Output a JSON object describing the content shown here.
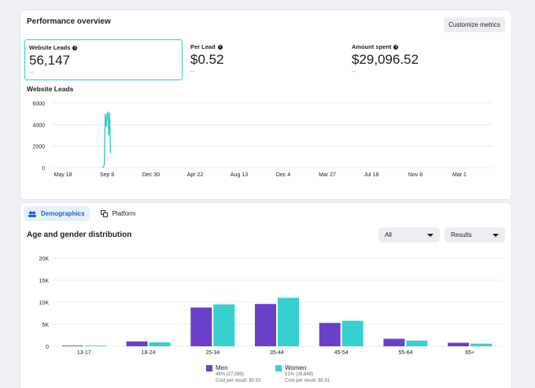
{
  "performance": {
    "title": "Performance overview",
    "customize_label": "Customize metrics",
    "metrics": [
      {
        "label": "Website Leads",
        "value": "56,147",
        "sub": "--"
      },
      {
        "label": "Per Lead",
        "value": "$0.52",
        "sub": "--"
      },
      {
        "label": "Amount spent",
        "value": "$29,096.52",
        "sub": "--"
      }
    ],
    "chart_title": "Website Leads"
  },
  "demographics": {
    "tabs": [
      {
        "label": "Demographics",
        "icon": "people-icon"
      },
      {
        "label": "Platform",
        "icon": "platform-icon"
      }
    ],
    "title": "Age and gender distribution",
    "filter_value": "All",
    "metric_value": "Results",
    "legend": [
      {
        "name": "Men",
        "line1": "48% (27,088)",
        "line2": "Cost per result: $0.53"
      },
      {
        "name": "Women",
        "line1": "51% (28,848)",
        "line2": "Cost per result: $0.51"
      }
    ]
  },
  "colors": {
    "accent": "#39c7c7",
    "men": "#6a3fc9",
    "women": "#36d1cf"
  },
  "chart_data": [
    {
      "type": "line",
      "title": "Website Leads",
      "x_ticks": [
        "May 18",
        "Sep 8",
        "Dec 30",
        "Apr 22",
        "Aug 13",
        "Dec 4",
        "Mar 27",
        "Jul 18",
        "Nov 8",
        "Mar 1"
      ],
      "y_ticks": [
        "0",
        "2000",
        "4000",
        "6000"
      ],
      "ylim": [
        0,
        6000
      ],
      "series": [
        {
          "values": [
            0,
            100,
            300,
            5000,
            3800,
            4800,
            5200,
            3000,
            5100,
            1300
          ]
        }
      ],
      "series_x_index": [
        0.9,
        0.92,
        0.94,
        0.96,
        0.98,
        1.0,
        1.02,
        1.04,
        1.06,
        1.08
      ],
      "grid": true
    },
    {
      "type": "bar",
      "title": "Age and gender distribution",
      "categories": [
        "13-17",
        "18-24",
        "25-34",
        "35-44",
        "45-54",
        "55-64",
        "65+"
      ],
      "y_ticks": [
        "0",
        "5K",
        "10K",
        "15K",
        "20K"
      ],
      "ylim": [
        0,
        20000
      ],
      "series": [
        {
          "name": "Men",
          "values": [
            150,
            1100,
            8800,
            9600,
            5300,
            1700,
            800
          ]
        },
        {
          "name": "Women",
          "values": [
            150,
            900,
            9500,
            11000,
            5800,
            1300,
            600
          ]
        }
      ],
      "grid": true
    }
  ]
}
